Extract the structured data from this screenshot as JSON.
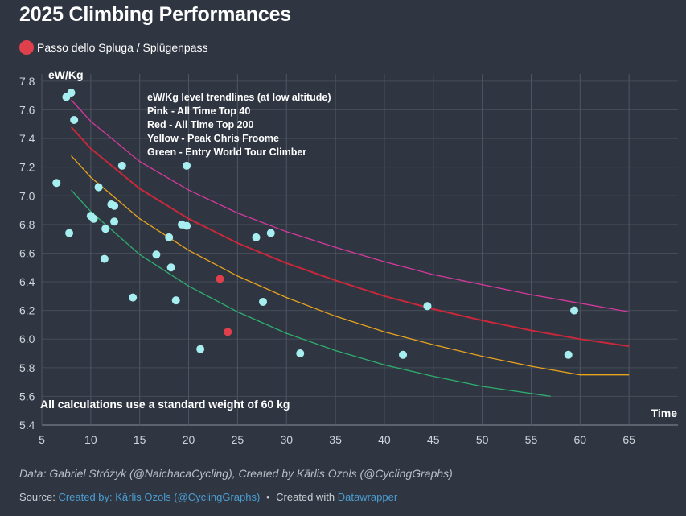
{
  "header": {
    "title": "2025 Climbing Performances"
  },
  "legend": {
    "label": "Passo dello Spluga / Splügenpass",
    "color": "#e0404c"
  },
  "chart_data": {
    "type": "scatter",
    "ylabel": "eW/Kg",
    "xlabel": "Time",
    "xlim": [
      5,
      70
    ],
    "ylim": [
      5.4,
      7.85
    ],
    "x_ticks": [
      5,
      10,
      15,
      20,
      25,
      30,
      35,
      40,
      45,
      50,
      55,
      60,
      65
    ],
    "y_ticks": [
      "5.4",
      "5.6",
      "5.8",
      "6.0",
      "6.2",
      "6.4",
      "6.6",
      "6.8",
      "7.0",
      "7.2",
      "7.4",
      "7.6",
      "7.8"
    ],
    "grid": true,
    "annotation_lines": [
      "eW/Kg level trendlines (at low altitude)",
      "Pink - All Time Top 40",
      "Red - All Time Top 200",
      "Yellow - Peak Chris Froome",
      "Green - Entry World Tour Climber"
    ],
    "note": "All calculations use a standard weight of 60 kg",
    "series": [
      {
        "color": "#a6eef0",
        "points": [
          {
            "x": 6.5,
            "y": 7.09
          },
          {
            "x": 7.5,
            "y": 7.69
          },
          {
            "x": 8.0,
            "y": 7.72
          },
          {
            "x": 8.3,
            "y": 7.53
          },
          {
            "x": 7.8,
            "y": 6.74
          },
          {
            "x": 10.0,
            "y": 6.86
          },
          {
            "x": 10.3,
            "y": 6.84
          },
          {
            "x": 10.8,
            "y": 7.06
          },
          {
            "x": 11.5,
            "y": 6.77
          },
          {
            "x": 11.4,
            "y": 6.56
          },
          {
            "x": 12.1,
            "y": 6.94
          },
          {
            "x": 12.4,
            "y": 6.93
          },
          {
            "x": 12.4,
            "y": 6.82
          },
          {
            "x": 13.2,
            "y": 7.21
          },
          {
            "x": 14.3,
            "y": 6.29
          },
          {
            "x": 16.7,
            "y": 6.59
          },
          {
            "x": 18.0,
            "y": 6.71
          },
          {
            "x": 18.2,
            "y": 6.5
          },
          {
            "x": 18.7,
            "y": 6.27
          },
          {
            "x": 19.3,
            "y": 6.8
          },
          {
            "x": 19.8,
            "y": 6.79
          },
          {
            "x": 19.8,
            "y": 7.21
          },
          {
            "x": 21.2,
            "y": 5.93
          },
          {
            "x": 26.9,
            "y": 6.71
          },
          {
            "x": 27.6,
            "y": 6.26
          },
          {
            "x": 28.4,
            "y": 6.74
          },
          {
            "x": 31.4,
            "y": 5.9
          },
          {
            "x": 41.9,
            "y": 5.89
          },
          {
            "x": 44.4,
            "y": 6.23
          },
          {
            "x": 58.8,
            "y": 5.89
          },
          {
            "x": 59.4,
            "y": 6.2
          }
        ]
      },
      {
        "name": "Passo dello Spluga / Splügenpass",
        "color": "#e0404c",
        "points": [
          {
            "x": 23.2,
            "y": 6.42
          },
          {
            "x": 24.0,
            "y": 6.05
          }
        ]
      }
    ],
    "trendlines": [
      {
        "color": "#d6399d",
        "points": [
          [
            8,
            7.67
          ],
          [
            10,
            7.52
          ],
          [
            15,
            7.24
          ],
          [
            20,
            7.04
          ],
          [
            25,
            6.88
          ],
          [
            30,
            6.75
          ],
          [
            35,
            6.64
          ],
          [
            40,
            6.54
          ],
          [
            45,
            6.45
          ],
          [
            50,
            6.38
          ],
          [
            55,
            6.31
          ],
          [
            60,
            6.25
          ],
          [
            65,
            6.19
          ]
        ]
      },
      {
        "color": "#c8283a",
        "points": [
          [
            8,
            7.48
          ],
          [
            10,
            7.33
          ],
          [
            15,
            7.05
          ],
          [
            20,
            6.84
          ],
          [
            25,
            6.67
          ],
          [
            30,
            6.53
          ],
          [
            35,
            6.41
          ],
          [
            40,
            6.3
          ],
          [
            45,
            6.21
          ],
          [
            50,
            6.13
          ],
          [
            55,
            6.06
          ],
          [
            60,
            6.0
          ],
          [
            65,
            5.95
          ]
        ]
      },
      {
        "color": "#e7a21e",
        "points": [
          [
            8,
            7.28
          ],
          [
            10,
            7.13
          ],
          [
            15,
            6.84
          ],
          [
            20,
            6.62
          ],
          [
            25,
            6.44
          ],
          [
            30,
            6.29
          ],
          [
            35,
            6.16
          ],
          [
            40,
            6.05
          ],
          [
            45,
            5.96
          ],
          [
            50,
            5.88
          ],
          [
            55,
            5.81
          ],
          [
            60,
            5.75
          ],
          [
            65,
            5.75
          ]
        ]
      },
      {
        "color": "#2fae6e",
        "points": [
          [
            8,
            7.04
          ],
          [
            10,
            6.89
          ],
          [
            15,
            6.59
          ],
          [
            20,
            6.37
          ],
          [
            25,
            6.19
          ],
          [
            30,
            6.04
          ],
          [
            35,
            5.92
          ],
          [
            40,
            5.82
          ],
          [
            45,
            5.74
          ],
          [
            50,
            5.67
          ],
          [
            55,
            5.62
          ],
          [
            57,
            5.6
          ]
        ]
      }
    ]
  },
  "footer": {
    "data_credit": "Data: Gabriel Stróżyk (@NaichacaCycling), Created by Kārlis Ozols (@CyclingGraphs)",
    "source_label": "Source:",
    "source_link": "Created by: Kārlis Ozols (@CyclingGraphs)",
    "created_with_label": "Created with",
    "created_with_link": "Datawrapper",
    "separator": "•"
  }
}
